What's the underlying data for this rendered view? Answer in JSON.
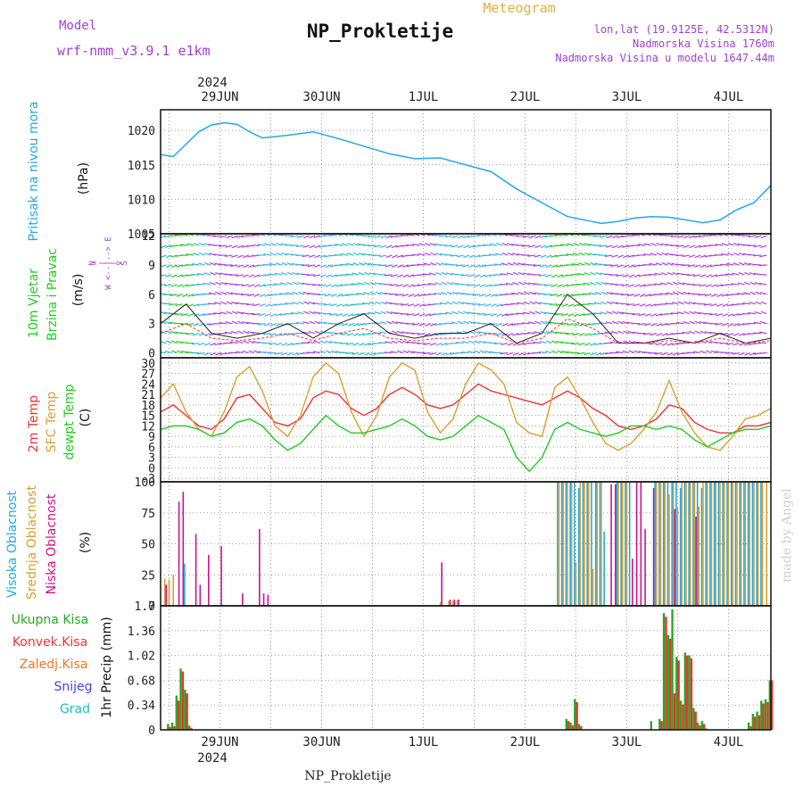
{
  "header": {
    "model_label": "Model",
    "model_value": "wrf-nmm_v3.9.1 e1km",
    "title": "NP_Prokletije",
    "meteogram": "Meteogram",
    "lonlat": "lon,lat (19.9125E, 42.5312N)",
    "altitude": "Nadmorska Visina 1760m",
    "model_altitude": "Nadmorska Visina u modelu 1647.44m",
    "footer": "NP_Prokletije",
    "credit": "made by Angel"
  },
  "colors": {
    "pressure": "#22a8e8",
    "wind_green": "#22cc22",
    "wind_violet": "#b040e0",
    "t2m": "#ee3333",
    "sfc": "#d8a030",
    "dew": "#22cc22",
    "high_cloud": "#22a8e8",
    "mid_cloud": "#d8a030",
    "low_cloud": "#cc1188",
    "precip_total": "#22aa22",
    "precip_conv": "#ee3333",
    "precip_frozen": "#ee7722",
    "snow": "#4444dd",
    "hail": "#22bbbb",
    "label_purple": "#a040d0"
  },
  "time_axis": {
    "year": "2024",
    "days": [
      "29JUN",
      "30JUN",
      "1JUL",
      "2JUL",
      "3JUL",
      "4JUL"
    ],
    "day_positions_hours": [
      14,
      38,
      62,
      86,
      110,
      134
    ],
    "span_hours": 144
  },
  "chart_data": [
    {
      "id": "pressure",
      "type": "line",
      "title": "",
      "ylabel_lines": [
        "Pritisak na nivou mora",
        "(hPa)"
      ],
      "yticks": [
        1005,
        1010,
        1015,
        1020
      ],
      "ylim": [
        1005,
        1023
      ],
      "x_hours": [
        0,
        3,
        6,
        9,
        12,
        15,
        18,
        21,
        24,
        30,
        36,
        42,
        48,
        54,
        60,
        66,
        72,
        78,
        84,
        90,
        96,
        100,
        104,
        108,
        112,
        116,
        120,
        124,
        128,
        132,
        136,
        140,
        144
      ],
      "series": [
        {
          "values": [
            1016.5,
            1016.2,
            1018.0,
            1019.8,
            1020.8,
            1021.1,
            1020.9,
            1019.8,
            1018.9,
            1019.3,
            1019.8,
            1018.8,
            1017.7,
            1016.6,
            1015.9,
            1016.0,
            1015.0,
            1014.0,
            1011.5,
            1009.5,
            1007.5,
            1007.0,
            1006.5,
            1006.8,
            1007.3,
            1007.5,
            1007.4,
            1007.0,
            1006.6,
            1007.0,
            1008.5,
            1009.5,
            1012.0
          ]
        }
      ]
    },
    {
      "id": "wind",
      "type": "line",
      "title": "",
      "ylabel_lines": [
        "10m Vjetar",
        "Brzina i Pravac",
        "(m/s)"
      ],
      "compass_lines": [
        "N",
        "^",
        "|",
        "W <--|--> E",
        "|",
        "v",
        "S"
      ],
      "yticks": [
        0,
        3,
        6,
        9,
        12
      ],
      "ylim": [
        -0.5,
        12.2
      ],
      "x_hours": [
        0,
        6,
        12,
        18,
        24,
        30,
        36,
        42,
        48,
        54,
        60,
        66,
        72,
        78,
        84,
        90,
        96,
        102,
        108,
        114,
        120,
        126,
        132,
        138,
        144
      ],
      "series": [
        {
          "name": "speed",
          "values": [
            3,
            5,
            2,
            1.5,
            2,
            3,
            1.5,
            3,
            4,
            2,
            1.5,
            2,
            2,
            3,
            1,
            2,
            6,
            4,
            1,
            1,
            1.5,
            1,
            2,
            1,
            1.5
          ]
        }
      ]
    },
    {
      "id": "temperature",
      "type": "line",
      "title": "",
      "ylabel_lines": [
        "2m Temp",
        "SFC Temp",
        "dewpt Temp",
        "(C)"
      ],
      "yticks": [
        -3,
        0,
        3,
        6,
        9,
        12,
        15,
        18,
        21,
        24,
        27,
        30
      ],
      "ylim": [
        -4,
        31.5
      ],
      "x_hours": [
        0,
        3,
        6,
        9,
        12,
        15,
        18,
        21,
        24,
        27,
        30,
        33,
        36,
        39,
        42,
        45,
        48,
        51,
        54,
        57,
        60,
        63,
        66,
        69,
        72,
        75,
        78,
        81,
        84,
        87,
        90,
        93,
        96,
        99,
        102,
        105,
        108,
        111,
        114,
        117,
        120,
        123,
        126,
        129,
        132,
        135,
        138,
        141,
        144
      ],
      "series": [
        {
          "name": "2m Temp",
          "values": [
            16,
            18,
            15,
            12,
            11,
            14,
            20,
            21,
            17,
            13,
            12,
            14,
            20,
            22,
            21,
            17,
            15,
            17,
            21,
            23,
            21,
            18,
            17,
            18,
            21,
            24,
            22,
            21,
            20,
            19,
            18,
            20,
            22,
            20,
            17,
            15,
            12,
            11,
            12,
            14,
            18,
            17,
            13,
            11,
            10,
            10,
            12,
            12,
            13
          ]
        },
        {
          "name": "SFC Temp",
          "values": [
            20,
            24,
            16,
            11,
            9,
            16,
            26,
            29,
            22,
            12,
            9,
            15,
            26,
            30,
            27,
            16,
            9,
            15,
            26,
            30,
            28,
            16,
            10,
            14,
            24,
            30,
            28,
            24,
            13,
            10,
            9,
            23,
            26,
            20,
            13,
            7,
            5,
            7,
            11,
            16,
            25,
            16,
            10,
            6,
            5,
            9,
            14,
            15,
            17
          ]
        },
        {
          "name": "dewpt Temp",
          "values": [
            11,
            12,
            12,
            11,
            9,
            10,
            13,
            14,
            12,
            8,
            5,
            7,
            11,
            15,
            12,
            10,
            10,
            11,
            12,
            14,
            12,
            9,
            8,
            9,
            12,
            15,
            13,
            11,
            3,
            -1,
            3,
            11,
            13,
            11,
            10,
            9,
            10,
            12,
            12,
            11,
            12,
            11,
            8,
            6,
            8,
            10,
            11,
            11,
            12
          ]
        }
      ]
    },
    {
      "id": "cloud",
      "type": "bar",
      "title": "",
      "ylabel_lines": [
        "Visoka Oblacnost",
        "Srednja Oblacnost",
        "Niska Oblacnost",
        "(%)"
      ],
      "yticks": [
        0,
        25,
        50,
        75,
        100
      ],
      "ylim": [
        0,
        100
      ],
      "x_hours": [
        1,
        2,
        3,
        4,
        5,
        6,
        8,
        9,
        10,
        11,
        14,
        19,
        23,
        24,
        25,
        66,
        68,
        69,
        70,
        72,
        94,
        95,
        96,
        97,
        98,
        99,
        100,
        101,
        102,
        103,
        104,
        105,
        106,
        107,
        108,
        109,
        110,
        111,
        112,
        113,
        114,
        116,
        117,
        118,
        119,
        120,
        121,
        122,
        123,
        124,
        125,
        126,
        127,
        128,
        129,
        130,
        131,
        132,
        133,
        134,
        135,
        136,
        137,
        138,
        139,
        140,
        141,
        142,
        143,
        144
      ],
      "series": [
        {
          "name": "Visoka Oblacnost",
          "values": [
            0,
            0,
            0,
            0,
            0,
            34,
            0,
            0,
            0,
            0,
            0,
            0,
            0,
            0,
            0,
            0,
            0,
            0,
            0,
            0,
            100,
            100,
            100,
            100,
            100,
            95,
            100,
            100,
            100,
            100,
            100,
            60,
            0,
            0,
            100,
            100,
            100,
            100,
            0,
            0,
            0,
            0,
            100,
            100,
            100,
            100,
            100,
            100,
            95,
            100,
            100,
            100,
            100,
            95,
            100,
            100,
            100,
            100,
            100,
            100,
            100,
            100,
            100,
            100,
            100,
            100,
            100,
            100,
            0,
            0
          ]
        },
        {
          "name": "Srednja Oblacnost",
          "values": [
            22,
            21,
            25,
            0,
            0,
            0,
            0,
            0,
            0,
            0,
            0,
            0,
            0,
            0,
            0,
            3,
            4,
            4,
            5,
            0,
            100,
            100,
            100,
            100,
            35,
            100,
            100,
            100,
            30,
            100,
            100,
            0,
            0,
            0,
            100,
            100,
            100,
            0,
            0,
            0,
            0,
            0,
            100,
            100,
            100,
            90,
            100,
            80,
            100,
            100,
            100,
            100,
            80,
            100,
            100,
            100,
            100,
            100,
            100,
            100,
            100,
            100,
            100,
            100,
            100,
            100,
            100,
            100,
            100,
            0
          ]
        },
        {
          "name": "Niska Oblacnost",
          "values": [
            17,
            0,
            0,
            84,
            92,
            0,
            58,
            17,
            0,
            41,
            48,
            10,
            62,
            10,
            9,
            35,
            5,
            5,
            5,
            0,
            0,
            0,
            0,
            0,
            0,
            0,
            0,
            0,
            0,
            0,
            0,
            0,
            98,
            98,
            0,
            0,
            0,
            38,
            100,
            100,
            62,
            95,
            0,
            0,
            0,
            0,
            78,
            0,
            0,
            0,
            0,
            72,
            0,
            0,
            0,
            0,
            0,
            0,
            0,
            0,
            0,
            0,
            0,
            0,
            0,
            0,
            0,
            0,
            0,
            0
          ]
        }
      ]
    },
    {
      "id": "precip",
      "type": "bar",
      "title": "",
      "ylabel_lines": [
        "1hr Precip (mm)"
      ],
      "legend_lines": [
        "Ukupna Kisa",
        "Konvek.Kisa",
        "Zaledj.Kisa",
        "Snijeg",
        "Grad"
      ],
      "yticks": [
        0,
        0.34,
        0.68,
        1.02,
        1.36,
        1.7
      ],
      "ylim": [
        0,
        1.7
      ],
      "x_hours": [
        2,
        3,
        4,
        5,
        6,
        7,
        96,
        97,
        98,
        99,
        100,
        116,
        118,
        119,
        120,
        121,
        122,
        123,
        124,
        125,
        126,
        127,
        128,
        129,
        139,
        140,
        141,
        142,
        143,
        144
      ],
      "series": [
        {
          "name": "Ukupna Kisa",
          "values": [
            0.08,
            0.1,
            0.47,
            0.84,
            0.55,
            0.06,
            0.15,
            0.1,
            0.42,
            0.08,
            0,
            0.12,
            0.15,
            1.6,
            1.3,
            1.65,
            1.0,
            0.4,
            1.06,
            1.02,
            0.3,
            0.1,
            0.12,
            0.02,
            0.1,
            0.22,
            0.25,
            0.4,
            0.42,
            0.68
          ]
        },
        {
          "name": "Konvek.Kisa",
          "values": [
            0.04,
            0.05,
            0.4,
            0.8,
            0.5,
            0.03,
            0.12,
            0.06,
            0.38,
            0.05,
            0,
            0,
            0.12,
            1.55,
            1.25,
            0.5,
            0.95,
            0.35,
            1.02,
            0.98,
            0.25,
            0.06,
            0.08,
            0,
            0.05,
            0.18,
            0.2,
            0.36,
            0.38,
            0.68
          ]
        }
      ]
    }
  ]
}
